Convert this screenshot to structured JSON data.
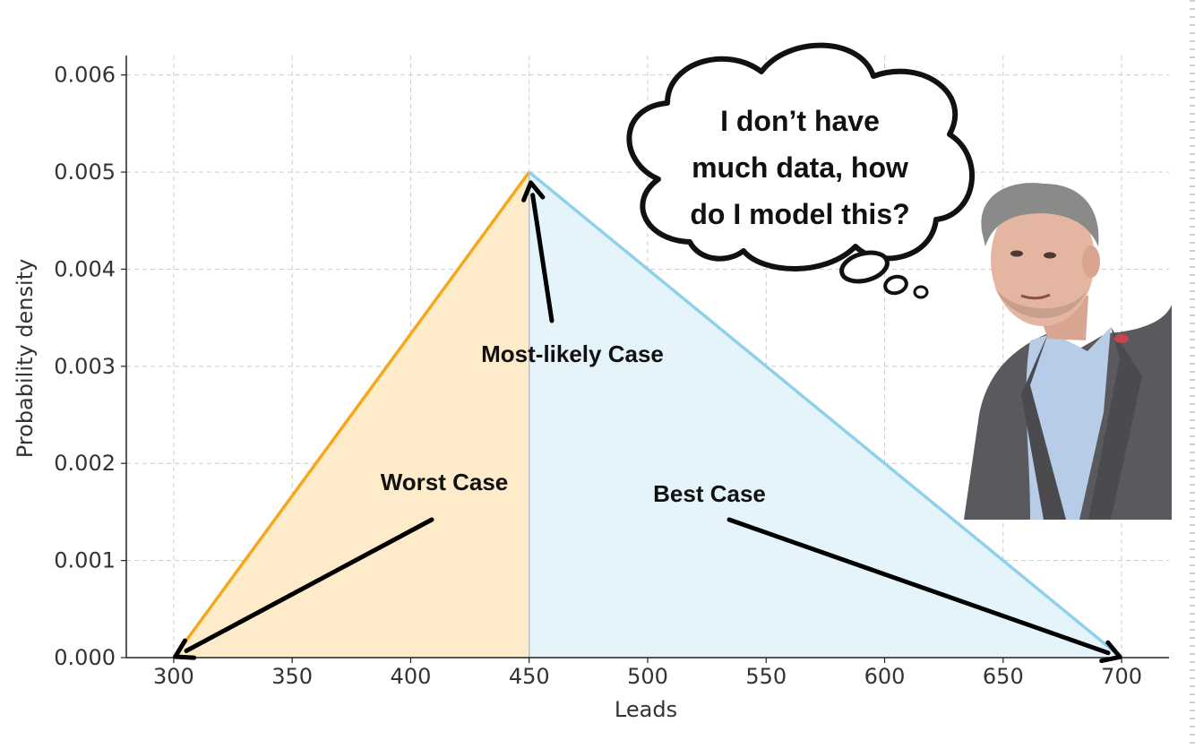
{
  "chart_data": {
    "type": "area",
    "distribution": "triangular",
    "title": "",
    "xlabel": "Leads",
    "ylabel": "Probability density",
    "xlim": [
      280,
      720
    ],
    "ylim": [
      0,
      0.0062
    ],
    "x_ticks": [
      300,
      350,
      400,
      450,
      500,
      550,
      600,
      650,
      700
    ],
    "x_tick_labels": [
      "300",
      "350",
      "400",
      "450",
      "500",
      "550",
      "600",
      "650",
      "700"
    ],
    "y_ticks": [
      0,
      0.001,
      0.002,
      0.003,
      0.004,
      0.005,
      0.006
    ],
    "y_tick_labels": [
      "0.000",
      "0.001",
      "0.002",
      "0.003",
      "0.004",
      "0.005",
      "0.006"
    ],
    "grid": true,
    "series": [
      {
        "x": [
          300,
          450
        ],
        "y": [
          0,
          0.005
        ],
        "color": "#f5a81c",
        "fill": "#fdebc9"
      },
      {
        "x": [
          450,
          700
        ],
        "y": [
          0.005,
          0
        ],
        "color": "#8fd0ea",
        "fill": "#e5f4fb"
      }
    ],
    "annotations": [
      {
        "text": "Most-likely Case",
        "points_to": [
          450,
          0.005
        ]
      },
      {
        "text": "Worst Case",
        "points_to": [
          300,
          0
        ]
      },
      {
        "text": "Best Case",
        "points_to": [
          700,
          0
        ]
      }
    ]
  },
  "thought_bubble": {
    "lines": [
      "I don’t have",
      "much data, how",
      "do I model this?"
    ]
  },
  "photo": {
    "icon": "person-photo"
  }
}
